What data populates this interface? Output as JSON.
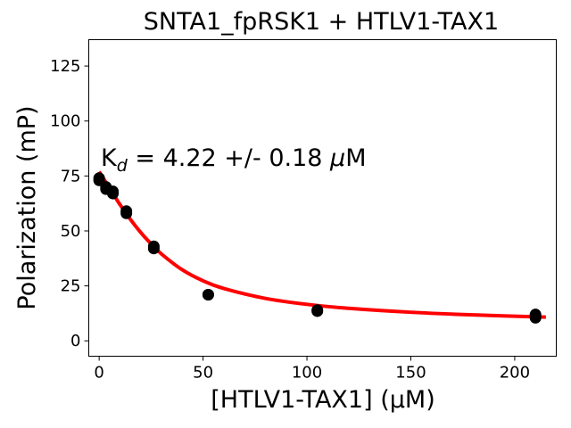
{
  "chart_data": {
    "type": "scatter",
    "title": "SNTA1_fpRSK1 + HTLV1-TAX1",
    "xlabel": "[HTLV1-TAX1] (μM)",
    "ylabel": "Polarization (mP)",
    "xlim": [
      -5,
      220
    ],
    "ylim": [
      -7,
      137
    ],
    "xticks": [
      0,
      50,
      100,
      150,
      200
    ],
    "yticks": [
      0,
      25,
      50,
      75,
      100,
      125
    ],
    "grid": false,
    "annotation": {
      "prefix": "K",
      "subscript": "d",
      "text": " = 4.22 +/- 0.18 ",
      "mu": "μ",
      "unit": "M"
    },
    "series": [
      {
        "kind": "points",
        "color": "#000000",
        "points": [
          [
            0,
            74
          ],
          [
            0,
            73
          ],
          [
            3.3,
            70
          ],
          [
            3.3,
            69
          ],
          [
            6.6,
            68
          ],
          [
            6.6,
            67
          ],
          [
            13.1,
            59
          ],
          [
            13.1,
            58
          ],
          [
            26.3,
            43
          ],
          [
            26.3,
            42
          ],
          [
            52.5,
            21
          ],
          [
            52.5,
            21
          ],
          [
            105,
            14
          ],
          [
            105,
            13.5
          ],
          [
            210,
            12
          ],
          [
            210,
            10.5
          ]
        ]
      },
      {
        "kind": "fit",
        "color": "#ff0000",
        "x": [
          0,
          3,
          6,
          10,
          15,
          20,
          25,
          30,
          40,
          50,
          60,
          80,
          100,
          120,
          150,
          180,
          215
        ],
        "y": [
          77,
          72.5,
          68,
          62,
          55.3,
          49.3,
          44.1,
          39.5,
          32.3,
          27.3,
          23.8,
          19.3,
          16.6,
          14.8,
          13.0,
          11.8,
          10.8
        ]
      }
    ]
  }
}
